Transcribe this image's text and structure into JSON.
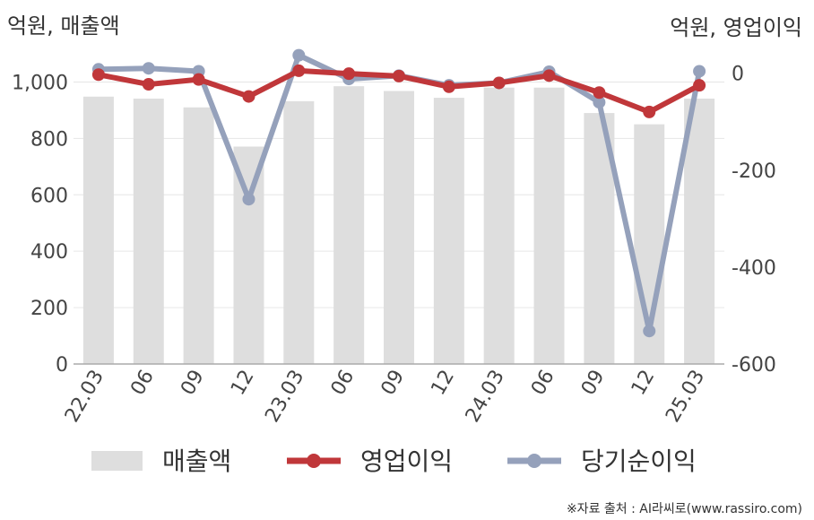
{
  "chart_data": {
    "type": "bar+line",
    "categories": [
      "22.03",
      "06",
      "09",
      "12",
      "23.03",
      "06",
      "09",
      "12",
      "24.03",
      "06",
      "09",
      "12",
      "25.03"
    ],
    "left_axis": {
      "title": "억원, 매출액",
      "ticks": [
        "0",
        "200",
        "400",
        "600",
        "800",
        "1,000"
      ],
      "ylim": [
        0,
        1100
      ]
    },
    "right_axis": {
      "title": "억원, 영업이익",
      "ticks": [
        "0",
        "-200",
        "-400",
        "-600"
      ],
      "ylim": [
        -600,
        40
      ]
    },
    "series": [
      {
        "name": "매출액",
        "kind": "bar",
        "axis": "left",
        "color": "#dedede",
        "values": [
          948,
          941,
          910,
          771,
          932,
          985,
          968,
          944,
          980,
          980,
          890,
          850,
          941
        ]
      },
      {
        "name": "영업이익",
        "kind": "line",
        "axis": "right",
        "color": "#c0373a",
        "values": [
          -3,
          -23,
          -13,
          -48,
          5,
          -1,
          -6,
          -28,
          -20,
          -5,
          -40,
          -80,
          -25
        ]
      },
      {
        "name": "당기순이익",
        "kind": "line",
        "axis": "right",
        "color": "#95a1bb",
        "values": [
          8,
          10,
          4,
          -260,
          37,
          -12,
          -5,
          -25,
          -20,
          3,
          -60,
          -532,
          4
        ]
      }
    ],
    "grid": true,
    "legend_position": "bottom"
  },
  "source_note": "※자료 출처 : AI라씨로(www.rassiro.com)"
}
